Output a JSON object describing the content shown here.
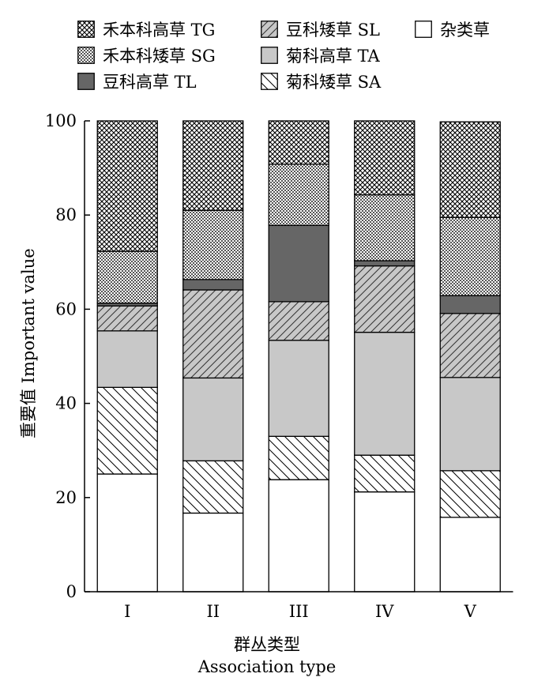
{
  "chart_data": {
    "type": "bar",
    "stacked": true,
    "categories": [
      "I",
      "II",
      "III",
      "IV",
      "V"
    ],
    "series": [
      {
        "name": "杂类草",
        "pattern": "none",
        "color": "#ffffff",
        "values": [
          25.0,
          16.7,
          23.8,
          21.2,
          15.8
        ]
      },
      {
        "name": "菊科矮草 SA",
        "pattern": "hatch-back",
        "color": "#ffffff",
        "values": [
          18.4,
          11.1,
          9.2,
          7.8,
          9.9
        ]
      },
      {
        "name": "菊科高草 TA",
        "pattern": "solid",
        "color": "#c8c8c8",
        "values": [
          12.0,
          17.6,
          20.4,
          26.1,
          19.8
        ]
      },
      {
        "name": "豆科矮草 SL",
        "pattern": "hatch-fwd",
        "color": "#c8c8c8",
        "values": [
          5.3,
          18.7,
          8.2,
          14.1,
          13.6
        ]
      },
      {
        "name": "豆科高草 TL",
        "pattern": "solid",
        "color": "#666666",
        "values": [
          0.6,
          2.2,
          16.2,
          1.1,
          3.8
        ]
      },
      {
        "name": "禾本科矮草 SG",
        "pattern": "fine-check",
        "color": "#ffffff",
        "values": [
          11.0,
          14.7,
          13.0,
          14.0,
          16.6
        ]
      },
      {
        "name": "禾本科高草 TG",
        "pattern": "crosshatch",
        "color": "#ffffff",
        "values": [
          27.7,
          19.0,
          9.2,
          15.7,
          20.3
        ]
      }
    ],
    "ylim": [
      0,
      100
    ],
    "yticks": [
      0,
      20,
      40,
      60,
      80,
      100
    ],
    "ylabel": "重要值 Important value",
    "xlabel": "群丛类型",
    "xlabel_en": "Association type",
    "legend_position": "top",
    "grid": false
  }
}
